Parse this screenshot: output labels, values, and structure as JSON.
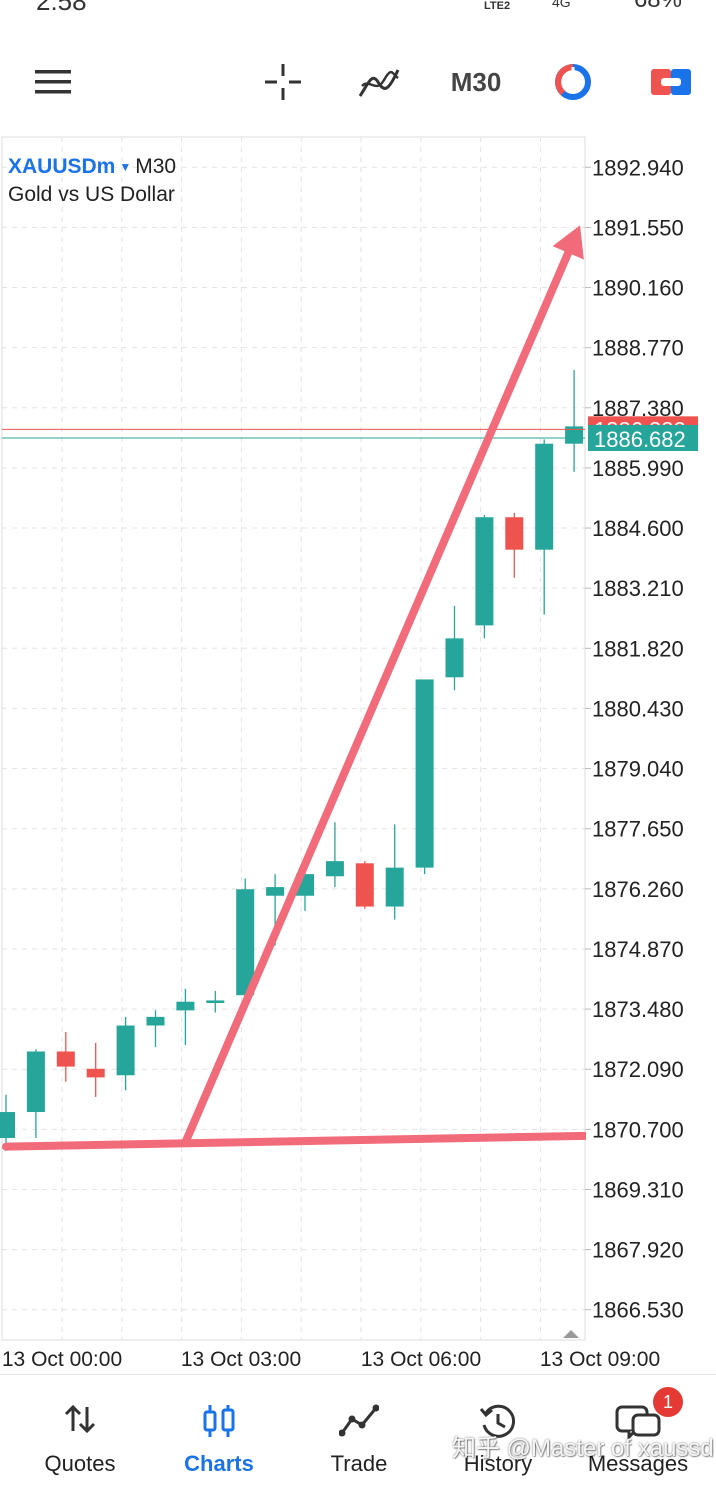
{
  "status_bar": {
    "time": "2:58",
    "network": "LTE2",
    "signal2": "4G",
    "battery": "68%"
  },
  "toolbar": {
    "timeframe": "M30",
    "icons": [
      "menu-icon",
      "crosshair-icon",
      "indicators-icon",
      "timeframe-selector",
      "chart-type-icon",
      "trade-toggle-icon"
    ]
  },
  "symbol": {
    "name": "XAUUSDm",
    "timeframe": "M30",
    "description": "Gold vs US Dollar"
  },
  "chart_data": {
    "type": "candlestick",
    "price_axis": [
      "1892.940",
      "1891.550",
      "1890.160",
      "1888.770",
      "1887.380",
      "1885.990",
      "1884.600",
      "1883.210",
      "1881.820",
      "1880.430",
      "1879.040",
      "1877.650",
      "1876.260",
      "1874.870",
      "1873.480",
      "1872.090",
      "1870.700",
      "1869.310",
      "1867.920",
      "1866.530"
    ],
    "time_axis": [
      "13 Oct 00:00",
      "13 Oct 03:00",
      "13 Oct 06:00",
      "13 Oct 09:00"
    ],
    "ylim": [
      1865.83,
      1893.64
    ],
    "bid_price": "1886.682",
    "ask_price": "1886.882",
    "grid": true,
    "colors": {
      "bull": "#26a69a",
      "bear": "#ef5350",
      "arrow": "#f26b7a",
      "bid": "#26a69a",
      "ask": "#ef5350"
    },
    "candles": [
      {
        "o": 1870.5,
        "h": 1871.5,
        "l": 1870.2,
        "c": 1871.1
      },
      {
        "o": 1871.1,
        "h": 1872.55,
        "l": 1870.5,
        "c": 1872.5
      },
      {
        "o": 1872.5,
        "h": 1872.95,
        "l": 1871.8,
        "c": 1872.15
      },
      {
        "o": 1872.1,
        "h": 1872.7,
        "l": 1871.45,
        "c": 1871.9
      },
      {
        "o": 1871.95,
        "h": 1873.3,
        "l": 1871.6,
        "c": 1873.1
      },
      {
        "o": 1873.1,
        "h": 1873.45,
        "l": 1872.6,
        "c": 1873.3
      },
      {
        "o": 1873.45,
        "h": 1873.95,
        "l": 1872.65,
        "c": 1873.65
      },
      {
        "o": 1873.62,
        "h": 1873.9,
        "l": 1873.4,
        "c": 1873.68
      },
      {
        "o": 1873.8,
        "h": 1876.5,
        "l": 1873.75,
        "c": 1876.25
      },
      {
        "o": 1876.1,
        "h": 1876.6,
        "l": 1874.95,
        "c": 1876.3
      },
      {
        "o": 1876.1,
        "h": 1876.95,
        "l": 1875.75,
        "c": 1876.6
      },
      {
        "o": 1876.55,
        "h": 1877.8,
        "l": 1876.3,
        "c": 1876.9
      },
      {
        "o": 1876.85,
        "h": 1876.9,
        "l": 1875.8,
        "c": 1875.85
      },
      {
        "o": 1875.85,
        "h": 1877.75,
        "l": 1875.55,
        "c": 1876.75
      },
      {
        "o": 1876.75,
        "h": 1881.1,
        "l": 1876.6,
        "c": 1881.1
      },
      {
        "o": 1881.15,
        "h": 1882.8,
        "l": 1880.85,
        "c": 1882.05
      },
      {
        "o": 1882.35,
        "h": 1884.9,
        "l": 1882.05,
        "c": 1884.85
      },
      {
        "o": 1884.85,
        "h": 1884.95,
        "l": 1883.45,
        "c": 1884.1
      },
      {
        "o": 1884.1,
        "h": 1886.65,
        "l": 1882.6,
        "c": 1886.55
      },
      {
        "o": 1886.55,
        "h": 1888.25,
        "l": 1885.9,
        "c": 1886.95
      }
    ],
    "drawing": {
      "type": "arrow",
      "start": {
        "candle_index": 6,
        "price": 1870.4
      },
      "end": {
        "candle_index": 19.2,
        "price": 1891.6
      },
      "trend_from": {
        "candle_index": 0,
        "price": 1870.3
      },
      "trend_to": {
        "candle_index": 19.4,
        "price": 1870.55
      }
    }
  },
  "bottom_nav": {
    "items": [
      {
        "label": "Quotes",
        "icon": "quotes-icon"
      },
      {
        "label": "Charts",
        "icon": "charts-icon",
        "active": true
      },
      {
        "label": "Trade",
        "icon": "trade-icon"
      },
      {
        "label": "History",
        "icon": "history-icon"
      },
      {
        "label": "Messages",
        "icon": "messages-icon",
        "badge": "1"
      }
    ]
  },
  "watermark": "知乎 @Master of xaussd"
}
